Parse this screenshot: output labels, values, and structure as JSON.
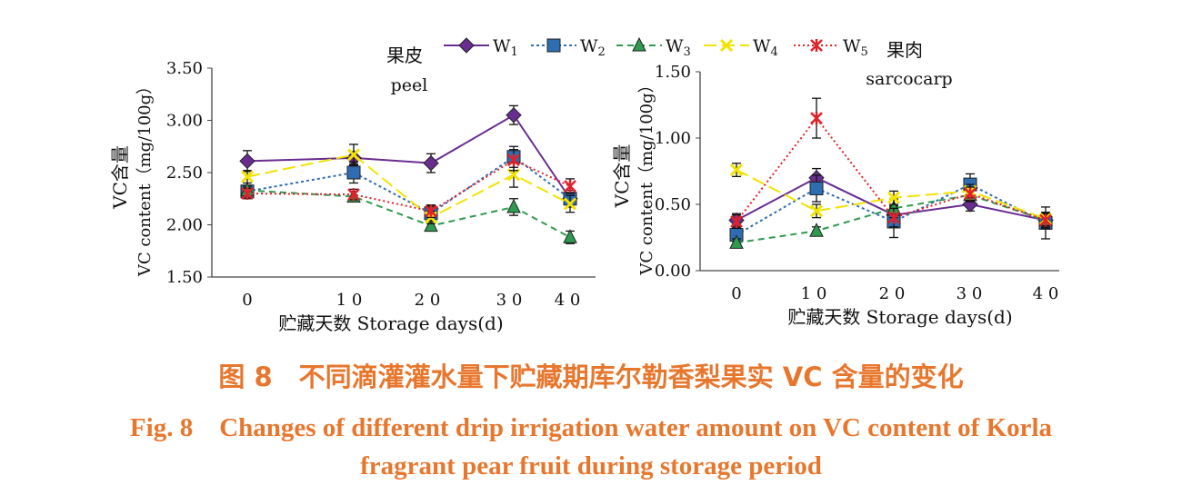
{
  "caption": {
    "zh": "图 8　不同滴灌灌水量下贮藏期库尔勒香梨果实 VC 含量的变化",
    "en_line1": "Fig. 8　Changes of different drip irrigation water amount on VC content of Korla",
    "en_line2": "fragrant pear fruit during storage period"
  },
  "legend": [
    {
      "label": "W1",
      "base": "W",
      "sub": "1",
      "marker": "diamond",
      "color": "#6a2c91",
      "dash": ""
    },
    {
      "label": "W2",
      "base": "W",
      "sub": "2",
      "marker": "square",
      "color": "#2f6db3",
      "dash": "3,3"
    },
    {
      "label": "W3",
      "base": "W",
      "sub": "3",
      "marker": "triangle",
      "color": "#2e9b4f",
      "dash": "7,5"
    },
    {
      "label": "W4",
      "base": "W",
      "sub": "4",
      "marker": "x",
      "color": "#f2e300",
      "dash": "14,6"
    },
    {
      "label": "W5",
      "base": "W",
      "sub": "5",
      "marker": "star",
      "color": "#e0212a",
      "dash": "2,3"
    }
  ],
  "chart_data": [
    {
      "type": "line",
      "title_zh": "果皮",
      "title_en": "peel",
      "ylabel_zh": "VC含量",
      "ylabel_en": "VC content（mg/100g）",
      "xlabel": "贮藏天数 Storage days(d)",
      "x": [
        "0",
        "10",
        "20",
        "30",
        "40"
      ],
      "xticklabels": [
        "0",
        "1 0",
        "2 0",
        "3 0",
        "4 0"
      ],
      "ylim": [
        1.5,
        3.5
      ],
      "yticks": [
        "1.50",
        "2.00",
        "2.50",
        "3.00",
        "3.50"
      ],
      "series": [
        {
          "name": "W1",
          "values": [
            2.61,
            2.64,
            2.59,
            3.05,
            2.25
          ],
          "errors": [
            0.1,
            0.06,
            0.09,
            0.09,
            0.06
          ]
        },
        {
          "name": "W2",
          "values": [
            2.32,
            2.5,
            2.11,
            2.65,
            2.25
          ],
          "errors": [
            0.05,
            0.1,
            0.07,
            0.1,
            0.08
          ]
        },
        {
          "name": "W3",
          "values": [
            2.33,
            2.27,
            1.99,
            2.17,
            1.88
          ],
          "errors": [
            0.04,
            0.05,
            0.05,
            0.08,
            0.06
          ]
        },
        {
          "name": "W4",
          "values": [
            2.46,
            2.67,
            2.07,
            2.48,
            2.2
          ],
          "errors": [
            0.06,
            0.1,
            0.06,
            0.12,
            0.08
          ]
        },
        {
          "name": "W5",
          "values": [
            2.3,
            2.29,
            2.13,
            2.62,
            2.37
          ],
          "errors": [
            0.05,
            0.05,
            0.06,
            0.1,
            0.07
          ]
        }
      ]
    },
    {
      "type": "line",
      "title_zh": "果肉",
      "title_en": "sarcocarp",
      "ylabel_zh": "VC含量",
      "ylabel_en": "VC content（mg/100g）",
      "xlabel": "贮藏天数 Storage days(d)",
      "x": [
        "0",
        "10",
        "20",
        "30",
        "40"
      ],
      "xticklabels": [
        "0",
        "1 0",
        "2 0",
        "3 0",
        "4 0"
      ],
      "ylim": [
        0.0,
        1.5
      ],
      "yticks": [
        "0.00",
        "0.50",
        "1.00",
        "1.50"
      ],
      "series": [
        {
          "name": "W1",
          "values": [
            0.38,
            0.7,
            0.42,
            0.5,
            0.38
          ],
          "errors": [
            0.05,
            0.07,
            0.06,
            0.05,
            0.05
          ]
        },
        {
          "name": "W2",
          "values": [
            0.27,
            0.62,
            0.37,
            0.65,
            0.36
          ],
          "errors": [
            0.05,
            0.1,
            0.12,
            0.08,
            0.12
          ]
        },
        {
          "name": "W3",
          "values": [
            0.21,
            0.3,
            0.47,
            0.57,
            0.38
          ],
          "errors": [
            0.03,
            0.03,
            0.07,
            0.05,
            0.05
          ]
        },
        {
          "name": "W4",
          "values": [
            0.76,
            0.45,
            0.55,
            0.6,
            0.39
          ],
          "errors": [
            0.05,
            0.05,
            0.05,
            0.05,
            0.05
          ]
        },
        {
          "name": "W5",
          "values": [
            0.37,
            1.15,
            0.4,
            0.58,
            0.38
          ],
          "errors": [
            0.05,
            0.15,
            0.07,
            0.05,
            0.06
          ]
        }
      ]
    }
  ]
}
